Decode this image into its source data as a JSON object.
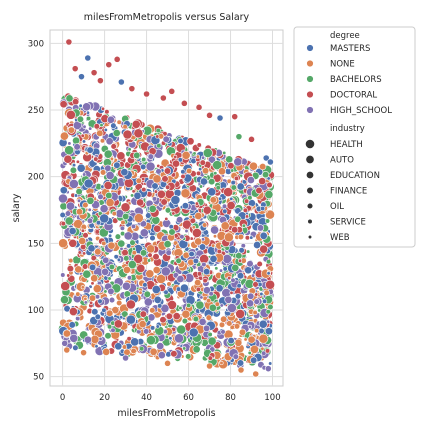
{
  "chart_data": {
    "type": "scatter",
    "title": "milesFromMetropolis versus Salary",
    "xlabel": "milesFromMetropolis",
    "ylabel": "salary",
    "xlim": [
      -6,
      105
    ],
    "ylim": [
      43,
      310
    ],
    "xticks": [
      0,
      20,
      40,
      60,
      80,
      100
    ],
    "yticks": [
      50,
      100,
      150,
      200,
      250,
      300
    ],
    "grid": true,
    "legend": {
      "placement": "outside-right",
      "hue_title": "degree",
      "size_title": "industry"
    },
    "hue": [
      {
        "name": "MASTERS",
        "color": "#4c72b0"
      },
      {
        "name": "NONE",
        "color": "#dd8452"
      },
      {
        "name": "BACHELORS",
        "color": "#55a868"
      },
      {
        "name": "DOCTORAL",
        "color": "#c44e52"
      },
      {
        "name": "HIGH_SCHOOL",
        "color": "#8172b3"
      }
    ],
    "size": [
      {
        "name": "HEALTH",
        "relative_size": 1.0
      },
      {
        "name": "AUTO",
        "relative_size": 0.9
      },
      {
        "name": "EDUCATION",
        "relative_size": 0.8
      },
      {
        "name": "FINANCE",
        "relative_size": 0.72
      },
      {
        "name": "OIL",
        "relative_size": 0.62
      },
      {
        "name": "SERVICE",
        "relative_size": 0.5
      },
      {
        "name": "WEB",
        "relative_size": 0.38
      }
    ],
    "outliers": [
      {
        "x": 3,
        "y": 301,
        "degree": "DOCTORAL"
      },
      {
        "x": 12,
        "y": 289,
        "degree": "MASTERS"
      },
      {
        "x": 22,
        "y": 284,
        "degree": "DOCTORAL"
      },
      {
        "x": 26,
        "y": 288,
        "degree": "DOCTORAL"
      },
      {
        "x": 6,
        "y": 281,
        "degree": "DOCTORAL"
      },
      {
        "x": 9,
        "y": 275,
        "degree": "MASTERS"
      },
      {
        "x": 15,
        "y": 278,
        "degree": "DOCTORAL"
      },
      {
        "x": 18,
        "y": 272,
        "degree": "DOCTORAL"
      },
      {
        "x": 28,
        "y": 271,
        "degree": "MASTERS"
      },
      {
        "x": 33,
        "y": 266,
        "degree": "DOCTORAL"
      },
      {
        "x": 40,
        "y": 262,
        "degree": "DOCTORAL"
      },
      {
        "x": 48,
        "y": 259,
        "degree": "DOCTORAL"
      },
      {
        "x": 52,
        "y": 264,
        "degree": "DOCTORAL"
      },
      {
        "x": 58,
        "y": 255,
        "degree": "DOCTORAL"
      },
      {
        "x": 65,
        "y": 252,
        "degree": "DOCTORAL"
      },
      {
        "x": 70,
        "y": 246,
        "degree": "DOCTORAL"
      },
      {
        "x": 75,
        "y": 244,
        "degree": "MASTERS"
      },
      {
        "x": 82,
        "y": 245,
        "degree": "DOCTORAL"
      },
      {
        "x": 84,
        "y": 230,
        "degree": "BACHELORS"
      },
      {
        "x": 90,
        "y": 228,
        "degree": "DOCTORAL"
      },
      {
        "x": 97,
        "y": 214,
        "degree": "MASTERS"
      },
      {
        "x": 99,
        "y": 211,
        "degree": "MASTERS"
      },
      {
        "x": 1,
        "y": 75,
        "degree": "HIGH_SCHOOL"
      },
      {
        "x": 2,
        "y": 70,
        "degree": "NONE"
      },
      {
        "x": 10,
        "y": 68,
        "degree": "NONE"
      },
      {
        "x": 30,
        "y": 64,
        "degree": "HIGH_SCHOOL"
      },
      {
        "x": 50,
        "y": 60,
        "degree": "NONE"
      },
      {
        "x": 70,
        "y": 58,
        "degree": "NONE"
      },
      {
        "x": 85,
        "y": 55,
        "degree": "NONE"
      },
      {
        "x": 92,
        "y": 52,
        "degree": "NONE"
      },
      {
        "x": 98,
        "y": 56,
        "degree": "HIGH_SCHOOL"
      }
    ],
    "bulk": {
      "x_range": [
        0,
        99
      ],
      "upper_y_at_x0": 262,
      "upper_y_at_x100": 205,
      "lower_y_at_x0": 72,
      "lower_y_at_x100": 55
    }
  }
}
